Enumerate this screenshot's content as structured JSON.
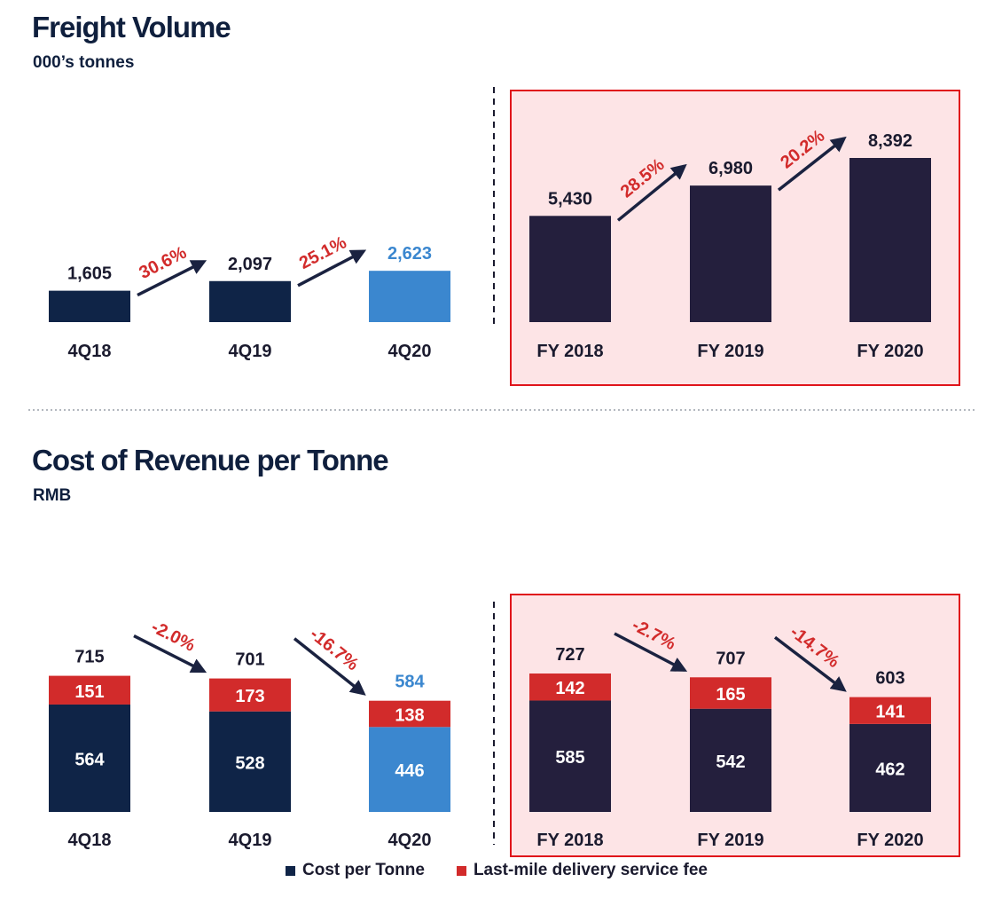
{
  "colors": {
    "navy": "#0f2447",
    "dark_purple": "#241f3d",
    "highlight_blue": "#3b87cf",
    "red": "#d22b2b",
    "growth_text": "#d22b2b",
    "highlight_bg": "#fde4e6",
    "highlight_border": "#e0141b"
  },
  "freight": {
    "title": "Freight Volume",
    "subtitle": "000’s tonnes"
  },
  "cost": {
    "title": "Cost of Revenue per Tonne",
    "subtitle": "RMB"
  },
  "legend": {
    "cost_per_tonne": "Cost per Tonne",
    "last_mile": "Last-mile delivery service fee"
  },
  "chart_data": [
    {
      "type": "bar",
      "title": "Freight Volume",
      "subtitle": "000’s tonnes",
      "panel": "quarterly",
      "categories": [
        "4Q18",
        "4Q19",
        "4Q20"
      ],
      "values": [
        1605,
        2097,
        2623
      ],
      "labels": [
        "1,605",
        "2,097",
        "2,623"
      ],
      "growth": [
        "30.6%",
        "25.1%"
      ],
      "highlight_index": 2
    },
    {
      "type": "bar",
      "title": "Freight Volume",
      "subtitle": "000’s tonnes",
      "panel": "annual",
      "categories": [
        "FY 2018",
        "FY 2019",
        "FY 2020"
      ],
      "values": [
        5430,
        6980,
        8392
      ],
      "labels": [
        "5,430",
        "6,980",
        "8,392"
      ],
      "growth": [
        "28.5%",
        "20.2%"
      ]
    },
    {
      "type": "bar",
      "stacked": true,
      "title": "Cost of Revenue per Tonne",
      "subtitle": "RMB",
      "panel": "quarterly",
      "categories": [
        "4Q18",
        "4Q19",
        "4Q20"
      ],
      "series": [
        {
          "name": "Cost per Tonne",
          "values": [
            564,
            528,
            446
          ]
        },
        {
          "name": "Last-mile delivery service fee",
          "values": [
            151,
            173,
            138
          ]
        }
      ],
      "totals": [
        715,
        701,
        584
      ],
      "growth": [
        "-2.0%",
        "-16.7%"
      ],
      "highlight_index": 2
    },
    {
      "type": "bar",
      "stacked": true,
      "title": "Cost of Revenue per Tonne",
      "subtitle": "RMB",
      "panel": "annual",
      "categories": [
        "FY 2018",
        "FY 2019",
        "FY 2020"
      ],
      "series": [
        {
          "name": "Cost per Tonne",
          "values": [
            585,
            542,
            462
          ]
        },
        {
          "name": "Last-mile delivery service fee",
          "values": [
            142,
            165,
            141
          ]
        }
      ],
      "totals": [
        727,
        707,
        603
      ],
      "growth": [
        "-2.7%",
        "-14.7%"
      ]
    }
  ]
}
